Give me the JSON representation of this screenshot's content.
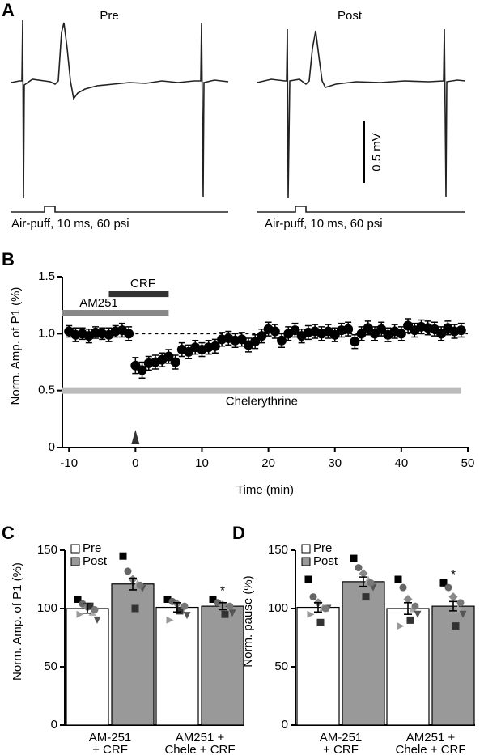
{
  "panel_a": {
    "label": "A",
    "pre_title": "Pre",
    "post_title": "Post",
    "scale_label": "0.5 mV",
    "stim_label_pre": "Air-puff, 10 ms, 60 psi",
    "stim_label_post": "Air-puff, 10 ms, 60 psi"
  },
  "chart_data": [
    {
      "type": "scatter",
      "panel": "B",
      "y_label": "Norm. Amp. of P1 (%)",
      "x_label": "Time (min)",
      "x": [
        -10,
        -9,
        -8,
        -7,
        -6,
        -5,
        -4,
        -3,
        -2,
        -1,
        0,
        1,
        2,
        3,
        4,
        5,
        6,
        7,
        8,
        9,
        10,
        11,
        12,
        13,
        14,
        15,
        16,
        17,
        18,
        19,
        20,
        21,
        22,
        23,
        24,
        25,
        26,
        27,
        28,
        29,
        30,
        31,
        32,
        33,
        34,
        35,
        36,
        37,
        38,
        39,
        40,
        41,
        42,
        43,
        44,
        45,
        46,
        47,
        48,
        49
      ],
      "values": [
        1.02,
        0.99,
        1.0,
        0.98,
        1.01,
        1.0,
        0.99,
        1.02,
        1.03,
        1.0,
        0.72,
        0.68,
        0.74,
        0.75,
        0.77,
        0.8,
        0.75,
        0.86,
        0.84,
        0.88,
        0.86,
        0.88,
        0.89,
        0.95,
        0.96,
        0.94,
        0.95,
        0.9,
        0.93,
        0.98,
        1.04,
        1.02,
        0.94,
        1.0,
        1.03,
        0.98,
        1.01,
        1.02,
        1.0,
        1.02,
        0.99,
        1.03,
        1.04,
        0.93,
        1.0,
        1.05,
        1.0,
        1.04,
        0.99,
        1.02,
        1.0,
        1.07,
        1.03,
        1.06,
        1.05,
        1.04,
        1.0,
        1.05,
        1.02,
        1.03
      ],
      "errors": [
        0.05,
        0.06,
        0.05,
        0.06,
        0.05,
        0.05,
        0.06,
        0.05,
        0.06,
        0.06,
        0.07,
        0.07,
        0.06,
        0.06,
        0.06,
        0.06,
        0.06,
        0.06,
        0.06,
        0.06,
        0.06,
        0.06,
        0.06,
        0.06,
        0.06,
        0.06,
        0.06,
        0.06,
        0.06,
        0.06,
        0.06,
        0.06,
        0.06,
        0.06,
        0.06,
        0.06,
        0.06,
        0.06,
        0.06,
        0.06,
        0.06,
        0.06,
        0.06,
        0.06,
        0.06,
        0.06,
        0.06,
        0.06,
        0.06,
        0.06,
        0.06,
        0.06,
        0.06,
        0.06,
        0.06,
        0.06,
        0.06,
        0.06,
        0.06,
        0.06
      ],
      "color": "#000000",
      "xlim": [
        -11,
        50
      ],
      "ylim": [
        0,
        1.5
      ],
      "xticks": [
        -10,
        0,
        10,
        20,
        30,
        40,
        50
      ],
      "yticks": [
        0,
        0.5,
        {
          "value": 1,
          "label": "1.0"
        },
        1.5
      ],
      "reference_line": 1,
      "arrow_x": 0,
      "drug_bars": [
        {
          "label": "CRF",
          "x": [
            -4,
            5
          ],
          "y": 1.35,
          "color": "#333333"
        },
        {
          "label": "AM251",
          "x": [
            -11,
            5
          ],
          "y": 1.18,
          "color": "#888888"
        },
        {
          "label": "Chelerythrine",
          "x": [
            -11,
            49
          ],
          "y": 0.5,
          "color": "#bbbbbb"
        }
      ]
    },
    {
      "type": "bar",
      "panel": "C",
      "y_label": "Norm. Amp. of P1 (%)",
      "categories": [
        [
          "AM-251",
          "+ CRF"
        ],
        [
          "AM251 +",
          "Chele + CRF"
        ]
      ],
      "series": [
        {
          "name": "Pre",
          "color": "#ffffff",
          "values": [
            100,
            101
          ],
          "errors": [
            4,
            4
          ],
          "points": [
            [
              108,
              104,
              101,
              97,
              90,
              95,
              102,
              99
            ],
            [
              108,
              106,
              104,
              100,
              94,
              90,
              98,
              102
            ]
          ]
        },
        {
          "name": "Post",
          "color": "#999999",
          "values": [
            121,
            102
          ],
          "errors": [
            5,
            3
          ],
          "points": [
            [
              145,
              132,
              125,
              122,
              117,
              110,
              100,
              120
            ],
            [
              108,
              105,
              103,
              100,
              96,
              92,
              95,
              102
            ]
          ]
        }
      ],
      "ylim": [
        0,
        150
      ],
      "yticks": [
        0,
        50,
        100,
        150
      ],
      "significance": "*",
      "marker_colors": [
        "#000000",
        "#666666",
        "#888888",
        "#aaaaaa",
        "#555555",
        "#999999",
        "#333333",
        "#777777"
      ]
    },
    {
      "type": "bar",
      "panel": "D",
      "y_label": "Norm. pause (%)",
      "categories": [
        [
          "AM-251",
          "+ CRF"
        ],
        [
          "AM251 +",
          "Chele + CRF"
        ]
      ],
      "series": [
        {
          "name": "Pre",
          "color": "#ffffff",
          "values": [
            101,
            100
          ],
          "errors": [
            4,
            5
          ],
          "points": [
            [
              125,
              110,
              105,
              101,
              100,
              95,
              88,
              100
            ],
            [
              125,
              118,
              108,
              100,
              95,
              85,
              90,
              102
            ]
          ]
        },
        {
          "name": "Post",
          "color": "#999999",
          "values": [
            123,
            102
          ],
          "errors": [
            4,
            4
          ],
          "points": [
            [
              143,
              135,
              130,
              125,
              118,
              115,
              110,
              122
            ],
            [
              122,
              118,
              110,
              100,
              95,
              90,
              85,
              105
            ]
          ]
        }
      ],
      "ylim": [
        0,
        150
      ],
      "yticks": [
        0,
        50,
        100,
        150
      ],
      "significance": "*",
      "marker_colors": [
        "#000000",
        "#666666",
        "#888888",
        "#aaaaaa",
        "#555555",
        "#999999",
        "#333333",
        "#777777"
      ]
    }
  ]
}
